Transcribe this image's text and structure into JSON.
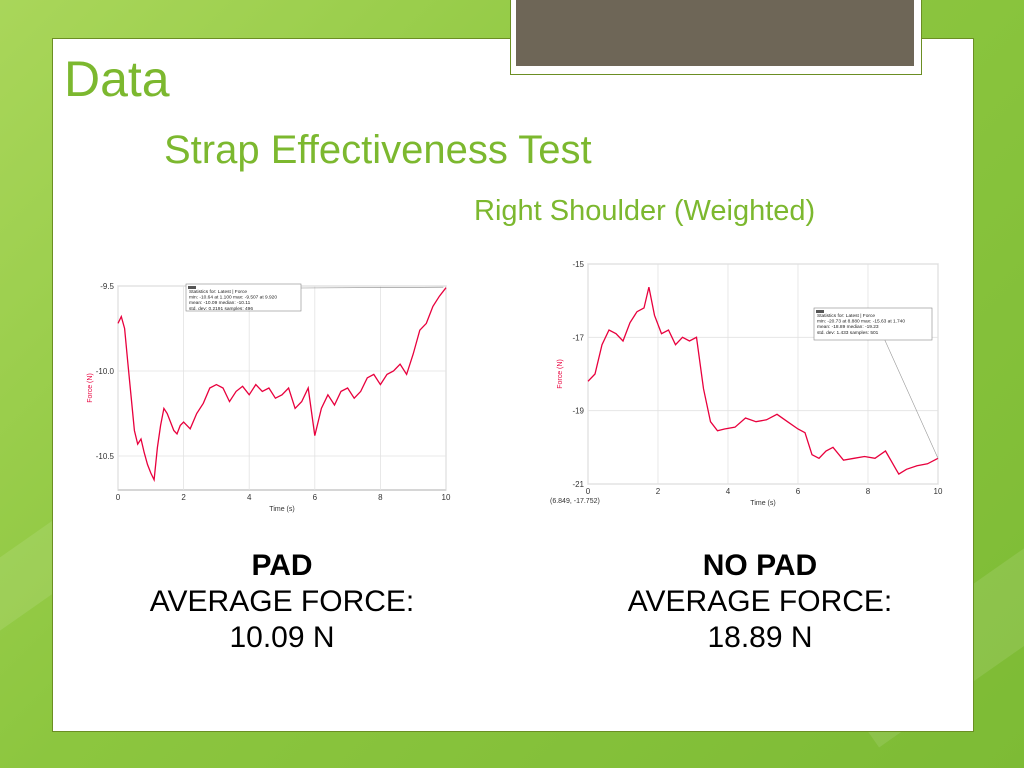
{
  "slide": {
    "title": "Data",
    "subtitle": "Strap Effectiveness Test",
    "subtitle2": "Right Shoulder (Weighted)"
  },
  "captions": [
    {
      "heading": "PAD",
      "label": "AVERAGE FORCE:",
      "value": "10.09 N"
    },
    {
      "heading": "NO PAD",
      "label": "AVERAGE FORCE:",
      "value": "18.89 N"
    }
  ],
  "colors": {
    "accent": "#7cb82f",
    "series": "#e8003d",
    "frame": "#6e6657"
  },
  "chart_data": [
    {
      "type": "line",
      "ylabel": "Force (N)",
      "xlabel": "Time (s)",
      "xlim": [
        0,
        10
      ],
      "ylim": [
        -10.7,
        -9.5
      ],
      "xticks": [
        "0",
        "2",
        "4",
        "6",
        "8",
        "10"
      ],
      "yticks": [
        {
          "v": -9.5,
          "t": "-9.5"
        },
        {
          "v": -10.0,
          "t": "-10.0"
        },
        {
          "v": -10.5,
          "t": "-10.5"
        }
      ],
      "grid": true,
      "stats": [
        "Statistics for: Latest | Force",
        "min: -10.64 at 1.100 max: -9.507 at 9.920",
        "mean: -10.09 median: -10.11",
        "std. dev: 0.2191 samples: 496"
      ],
      "series": [
        {
          "x": [
            0,
            0.1,
            0.2,
            0.3,
            0.4,
            0.5,
            0.6,
            0.7,
            0.8,
            0.9,
            1.0,
            1.1,
            1.2,
            1.3,
            1.4,
            1.5,
            1.6,
            1.7,
            1.8,
            1.9,
            2.0,
            2.2,
            2.4,
            2.6,
            2.8,
            3.0,
            3.2,
            3.4,
            3.6,
            3.8,
            4.0,
            4.2,
            4.4,
            4.6,
            4.8,
            5.0,
            5.2,
            5.4,
            5.6,
            5.8,
            6.0,
            6.2,
            6.4,
            6.6,
            6.8,
            7.0,
            7.2,
            7.4,
            7.6,
            7.8,
            8.0,
            8.2,
            8.4,
            8.6,
            8.8,
            9.0,
            9.2,
            9.4,
            9.6,
            9.8,
            10.0
          ],
          "y": [
            -9.72,
            -9.68,
            -9.75,
            -9.95,
            -10.15,
            -10.35,
            -10.43,
            -10.4,
            -10.48,
            -10.55,
            -10.6,
            -10.64,
            -10.45,
            -10.32,
            -10.22,
            -10.25,
            -10.3,
            -10.35,
            -10.37,
            -10.32,
            -10.3,
            -10.34,
            -10.25,
            -10.19,
            -10.1,
            -10.08,
            -10.1,
            -10.18,
            -10.12,
            -10.09,
            -10.14,
            -10.08,
            -10.12,
            -10.1,
            -10.16,
            -10.14,
            -10.1,
            -10.22,
            -10.18,
            -10.1,
            -10.38,
            -10.22,
            -10.14,
            -10.2,
            -10.12,
            -10.1,
            -10.16,
            -10.12,
            -10.04,
            -10.02,
            -10.08,
            -10.02,
            -10.0,
            -9.96,
            -10.02,
            -9.9,
            -9.76,
            -9.72,
            -9.62,
            -9.56,
            -9.51
          ]
        }
      ]
    },
    {
      "type": "line",
      "ylabel": "Force (N)",
      "xlabel": "Time (s)",
      "xlim": [
        0,
        10
      ],
      "ylim": [
        -21,
        -15
      ],
      "xticks": [
        "0",
        "2",
        "4",
        "6",
        "8",
        "10"
      ],
      "yticks": [
        {
          "v": -15,
          "t": "-15"
        },
        {
          "v": -17,
          "t": "-17"
        },
        {
          "v": -19,
          "t": "-19"
        },
        {
          "v": -21,
          "t": "-21"
        }
      ],
      "grid": true,
      "cursor_readout": "(6.849, -17.752)",
      "stats": [
        "Statistics for: Latest | Force",
        "min: -20.73 at 8.880 max: -15.63 at 1.740",
        "mean: -18.89 median: -19.23",
        "std. dev: 1.433 samples: 501"
      ],
      "series": [
        {
          "x": [
            0,
            0.2,
            0.4,
            0.6,
            0.8,
            1.0,
            1.2,
            1.4,
            1.6,
            1.74,
            1.9,
            2.1,
            2.3,
            2.5,
            2.7,
            2.9,
            3.1,
            3.3,
            3.5,
            3.7,
            3.9,
            4.2,
            4.5,
            4.8,
            5.1,
            5.4,
            5.7,
            6.0,
            6.2,
            6.4,
            6.6,
            6.8,
            7.0,
            7.3,
            7.6,
            7.9,
            8.2,
            8.5,
            8.8,
            8.88,
            9.1,
            9.4,
            9.7,
            10.0
          ],
          "y": [
            -18.2,
            -18.0,
            -17.2,
            -16.8,
            -16.9,
            -17.1,
            -16.6,
            -16.3,
            -16.2,
            -15.63,
            -16.4,
            -16.9,
            -16.8,
            -17.2,
            -17.0,
            -17.1,
            -17.0,
            -18.4,
            -19.3,
            -19.55,
            -19.5,
            -19.45,
            -19.2,
            -19.3,
            -19.25,
            -19.1,
            -19.3,
            -19.5,
            -19.6,
            -20.2,
            -20.3,
            -20.1,
            -20.0,
            -20.35,
            -20.3,
            -20.25,
            -20.3,
            -20.1,
            -20.6,
            -20.73,
            -20.6,
            -20.5,
            -20.45,
            -20.3
          ]
        }
      ]
    }
  ]
}
